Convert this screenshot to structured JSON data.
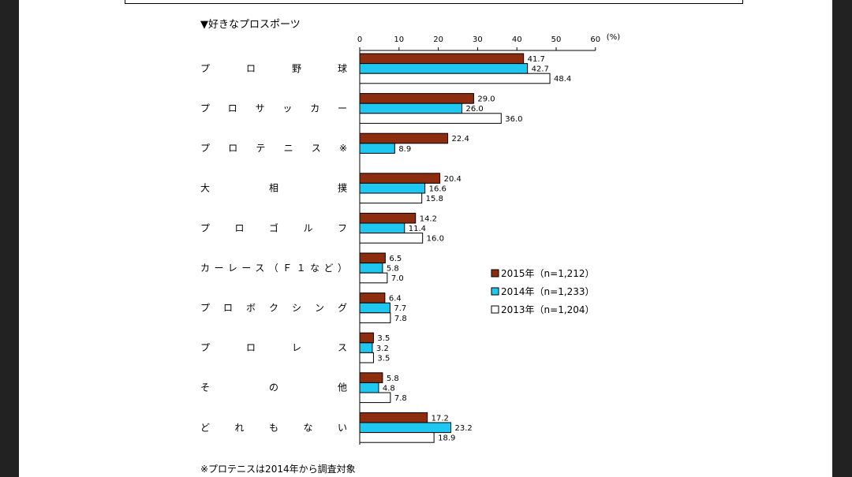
{
  "chart_data": {
    "type": "bar",
    "orientation": "horizontal",
    "title": "▼好きなプロスポーツ",
    "unit": "(%)",
    "xlim": [
      0,
      60
    ],
    "ticks": [
      0,
      10,
      20,
      30,
      40,
      50,
      60
    ],
    "categories": [
      "プロ野球",
      "プロサッカー",
      "プロテニス※",
      "大相撲",
      "プロゴルフ",
      "カーレース（Ｆ１など）",
      "プロボクシング",
      "プロレス",
      "その他",
      "どれもない"
    ],
    "series": [
      {
        "name": "2015年（n=1,212）",
        "color": "#8B2D0E",
        "values": [
          41.7,
          29.0,
          22.4,
          20.4,
          14.2,
          6.5,
          6.4,
          3.5,
          5.8,
          17.2
        ]
      },
      {
        "name": "2014年（n=1,233）",
        "color": "#1EC8F0",
        "values": [
          42.7,
          26.0,
          8.9,
          16.6,
          11.4,
          5.8,
          7.7,
          3.2,
          4.8,
          23.2
        ]
      },
      {
        "name": "2013年（n=1,204）",
        "color": "#FFFFFF",
        "values": [
          48.4,
          36.0,
          null,
          15.8,
          16.0,
          7.0,
          7.8,
          3.5,
          7.8,
          18.9
        ]
      }
    ],
    "footnote": "※プロテニスは2014年から調査対象"
  }
}
